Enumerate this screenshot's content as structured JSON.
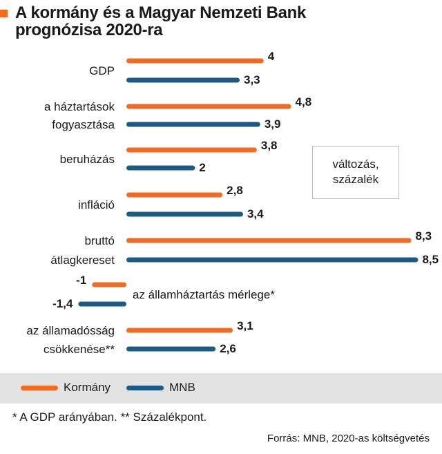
{
  "title_lines": [
    "A kormány és a Magyar Nemzeti Bank",
    "prognózisa 2020-ra"
  ],
  "unit_lines": [
    "változás,",
    "százalék"
  ],
  "legend": [
    {
      "name": "Kormány",
      "color": "#f26b21"
    },
    {
      "name": "MNB",
      "color": "#1d5a84"
    }
  ],
  "footnote": "* A GDP arányában. ** Százalékpont.",
  "source": "Forrás: MNB, 2020-as költségvetés",
  "chart_data": {
    "type": "bar",
    "orientation": "horizontal",
    "categories": [
      {
        "label_lines": [
          "GDP"
        ],
        "values": [
          4,
          3.3
        ],
        "labels": [
          "4",
          "3,3"
        ]
      },
      {
        "label_lines": [
          "a háztartások",
          "fogyasztása"
        ],
        "values": [
          4.8,
          3.9
        ],
        "labels": [
          "4,8",
          "3,9"
        ]
      },
      {
        "label_lines": [
          "beruházás"
        ],
        "values": [
          3.8,
          2
        ],
        "labels": [
          "3,8",
          "2"
        ]
      },
      {
        "label_lines": [
          "infláció"
        ],
        "values": [
          2.8,
          3.4
        ],
        "labels": [
          "2,8",
          "3,4"
        ]
      },
      {
        "label_lines": [
          "bruttó",
          "átlagkereset"
        ],
        "values": [
          8.3,
          8.5
        ],
        "labels": [
          "8,3",
          "8,5"
        ]
      },
      {
        "label_lines": [
          "az államháztartás mérlege*"
        ],
        "values": [
          -1,
          -1.4
        ],
        "labels": [
          "-1",
          "-1,4"
        ]
      },
      {
        "label_lines": [
          "az államadósság",
          "csökkenése**"
        ],
        "values": [
          3.1,
          2.6
        ],
        "labels": [
          "3,1",
          "2,6"
        ]
      }
    ],
    "series": [
      {
        "name": "Kormány",
        "color": "#f26b21"
      },
      {
        "name": "MNB",
        "color": "#1d5a84"
      }
    ],
    "xlim": [
      -1.4,
      8.5
    ],
    "grid": false,
    "legend_position": "bottom"
  }
}
